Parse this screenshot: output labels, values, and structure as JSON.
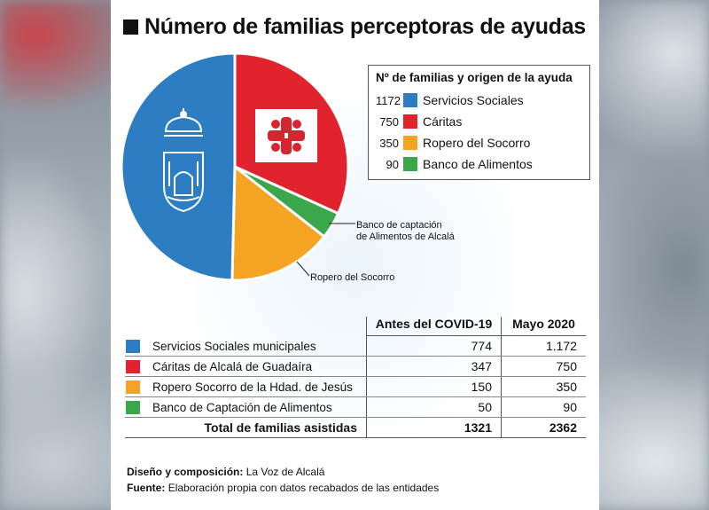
{
  "title": "Número de familias perceptoras de ayudas",
  "legend": {
    "title": "Nº de familias y origen de la ayuda",
    "items": [
      {
        "value": "1172",
        "label": "Servicios Sociales",
        "color": "#2d7dc2"
      },
      {
        "value": "750",
        "label": "Cáritas",
        "color": "#e0232d"
      },
      {
        "value": "350",
        "label": "Ropero del Socorro",
        "color": "#f4a323"
      },
      {
        "value": "90",
        "label": "Banco de Alimentos",
        "color": "#3aa84a"
      }
    ]
  },
  "callouts": {
    "banco_line1": "Banco de captación",
    "banco_line2": "de Alimentos de Alcalá",
    "ropero": "Ropero del Socorro"
  },
  "table": {
    "col_a": "Antes del COVID-19",
    "col_b": "Mayo 2020",
    "rows": [
      {
        "label": "Servicios Sociales municipales",
        "a": "774",
        "b": "1.172",
        "color": "#2d7dc2"
      },
      {
        "label": "Cáritas de Alcalá de Guadaíra",
        "a": "347",
        "b": "750",
        "color": "#e0232d"
      },
      {
        "label": "Ropero Socorro de la Hdad. de Jesús",
        "a": "150",
        "b": "350",
        "color": "#f4a323"
      },
      {
        "label": "Banco de Captación de Alimentos",
        "a": "50",
        "b": "90",
        "color": "#3aa84a"
      }
    ],
    "total_label": "Total de familias asistidas",
    "total_a": "1321",
    "total_b": "2362"
  },
  "footer": {
    "design_label": "Diseño y composición:",
    "design_value": "La Voz de Alcalá",
    "source_label": "Fuente:",
    "source_value": "Elaboración propia con datos recabados de las entidades"
  },
  "chart_data": {
    "type": "pie",
    "title": "Número de familias perceptoras de ayudas",
    "categories": [
      "Servicios Sociales",
      "Cáritas",
      "Ropero del Socorro",
      "Banco de Alimentos"
    ],
    "values": [
      1172,
      750,
      350,
      90
    ],
    "colors": [
      "#2d7dc2",
      "#e0232d",
      "#f4a323",
      "#3aa84a"
    ],
    "legend": "top-right"
  }
}
